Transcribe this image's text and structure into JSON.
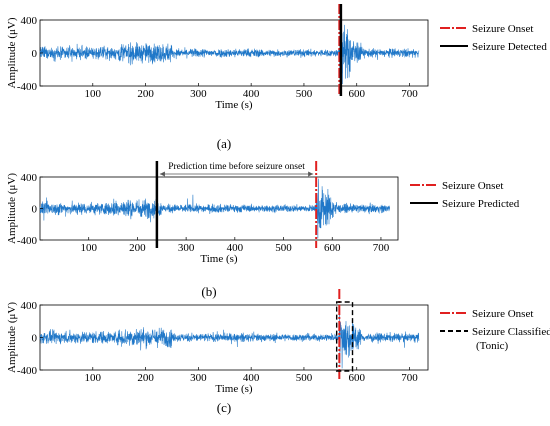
{
  "chart_data": [
    {
      "type": "line",
      "caption": "(a)",
      "xlabel": "Time (s)",
      "ylabel": "Amplitude (μV)",
      "xlim": [
        0,
        735
      ],
      "ylim": [
        -400,
        400
      ],
      "xticks": [
        100,
        200,
        300,
        400,
        500,
        600,
        700
      ],
      "yticks": [
        400,
        0,
        -400
      ],
      "signal": {
        "color": "#1f77c8",
        "t_end": 718,
        "burst_start": 567,
        "burst_end": 610
      },
      "markers": [
        {
          "x": 567,
          "color": "#e02020",
          "style": "dash-dot",
          "label": "Seizure Onset"
        },
        {
          "x": 570,
          "color": "#000000",
          "style": "solid",
          "label": "Seizure Detected"
        }
      ],
      "legend": [
        {
          "label": "Seizure Onset",
          "color": "#e02020",
          "style": "dash-dot"
        },
        {
          "label": "Seizure Detected",
          "color": "#000000",
          "style": "solid"
        }
      ]
    },
    {
      "type": "line",
      "caption": "(b)",
      "xlabel": "Time (s)",
      "ylabel": "Amplitude (μV)",
      "xlim": [
        0,
        735
      ],
      "ylim": [
        -400,
        400
      ],
      "xticks": [
        100,
        200,
        300,
        400,
        500,
        600,
        700
      ],
      "yticks": [
        400,
        0,
        -400
      ],
      "signal": {
        "color": "#1f77c8",
        "t_end": 718,
        "burst_start": 567,
        "burst_end": 610
      },
      "markers": [
        {
          "x": 240,
          "color": "#000000",
          "style": "solid",
          "label": "Seizure Predicted"
        },
        {
          "x": 567,
          "color": "#e02020",
          "style": "dash-dot",
          "label": "Seizure Onset"
        }
      ],
      "annotation": {
        "text": "Prediction time before seizure onset",
        "from": 240,
        "to": 567
      },
      "legend": [
        {
          "label": "Seizure Onset",
          "color": "#e02020",
          "style": "dash-dot"
        },
        {
          "label": "Seizure Predicted",
          "color": "#000000",
          "style": "solid"
        }
      ]
    },
    {
      "type": "line",
      "caption": "(c)",
      "xlabel": "Time (s)",
      "ylabel": "Amplitude (μV)",
      "xlim": [
        0,
        735
      ],
      "ylim": [
        -400,
        400
      ],
      "xticks": [
        100,
        200,
        300,
        400,
        500,
        600,
        700
      ],
      "yticks": [
        400,
        0,
        -400
      ],
      "signal": {
        "color": "#1f77c8",
        "t_end": 718,
        "burst_start": 567,
        "burst_end": 610
      },
      "markers": [
        {
          "x": 567,
          "color": "#e02020",
          "style": "dash-dot",
          "label": "Seizure Onset"
        }
      ],
      "box": {
        "x0": 562,
        "x1": 592,
        "color": "#000000",
        "style": "dashed",
        "label": "Seizure Classified (Tonic)"
      },
      "legend": [
        {
          "label": "Seizure Onset",
          "color": "#e02020",
          "style": "dash-dot"
        },
        {
          "label": "Seizure Classified",
          "label2": "(Tonic)",
          "color": "#000000",
          "style": "dashed"
        }
      ]
    }
  ]
}
